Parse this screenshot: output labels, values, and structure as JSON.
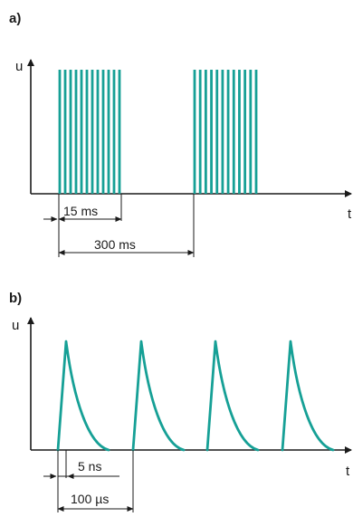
{
  "panel_a": {
    "label": "a)",
    "y_axis_label": "u",
    "x_axis_label": "t",
    "burst_dimension": "15 ms",
    "period_dimension": "300 ms",
    "pulses_per_burst": 12
  },
  "panel_b": {
    "label": "b)",
    "y_axis_label": "u",
    "x_axis_label": "t",
    "rise_dimension": "5 ns",
    "period_dimension": "100 µs",
    "pulse_count": 4
  },
  "colors": {
    "pulse": "#16a096",
    "axis": "#1a1a1a"
  }
}
